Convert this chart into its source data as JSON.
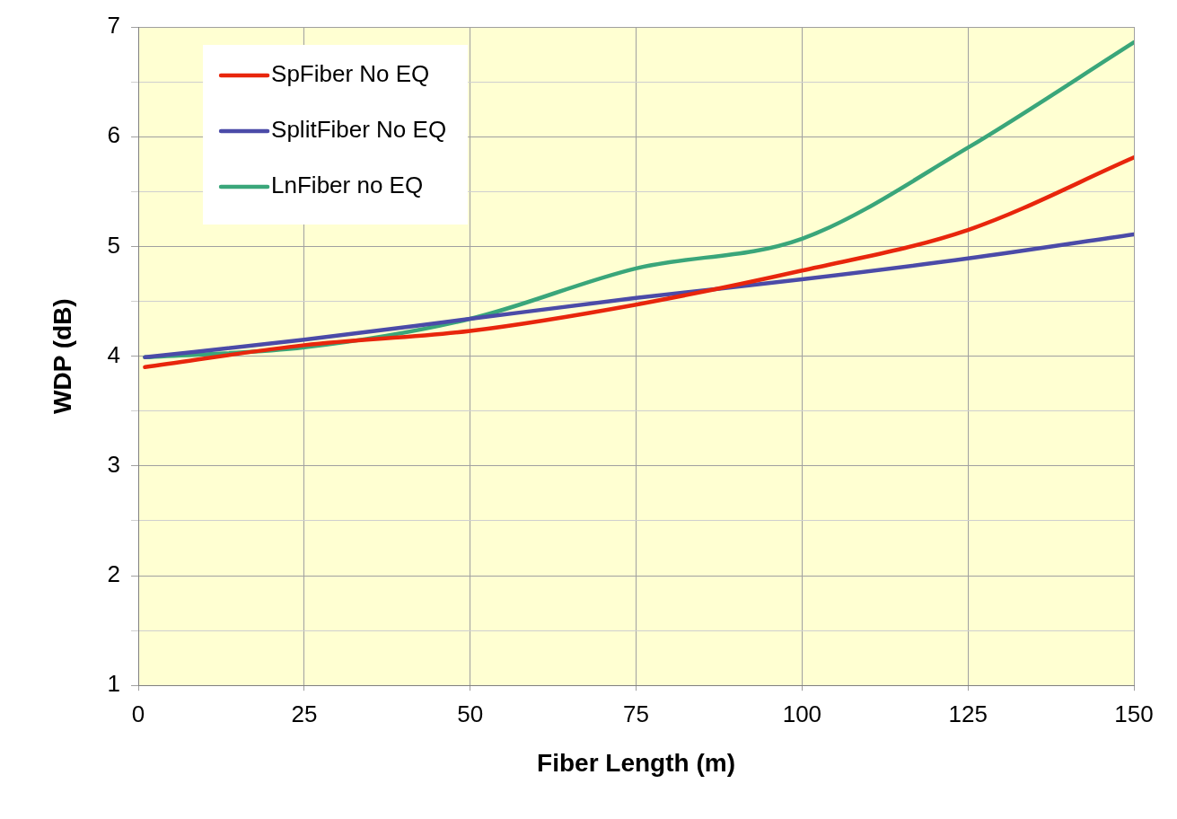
{
  "chart_data": {
    "type": "line",
    "xlabel": "Fiber Length (m)",
    "ylabel": "WDP (dB)",
    "xlim": [
      0,
      150
    ],
    "xticks": [
      0,
      25,
      50,
      75,
      100,
      125,
      150
    ],
    "ylim": [
      1,
      7
    ],
    "yticks": [
      1,
      {
        "value": 1.5,
        "label": null
      },
      2,
      {
        "value": 2.5,
        "label": null
      },
      3,
      {
        "value": 3.5,
        "label": null
      },
      4,
      {
        "value": 4.5,
        "label": null
      },
      5,
      {
        "value": 5.5,
        "label": null
      },
      6,
      {
        "value": 6.5,
        "label": null
      },
      7
    ],
    "grid": true,
    "legend": "top left",
    "marker": "none",
    "line_style": "solid",
    "series": [
      {
        "name": "SpFiber No EQ",
        "color": "#e8260c",
        "x": [
          1,
          25,
          50,
          75,
          100,
          125,
          150
        ],
        "values": [
          3.9,
          4.1,
          4.23,
          4.47,
          4.78,
          5.15,
          5.81
        ]
      },
      {
        "name": "SplitFiber No EQ",
        "color": "#4b4ba8",
        "x": [
          1,
          25,
          50,
          75,
          100,
          125,
          150
        ],
        "values": [
          3.99,
          4.15,
          4.34,
          4.53,
          4.7,
          4.89,
          5.11
        ]
      },
      {
        "name": "LnFiber no EQ",
        "color": "#3aa67a",
        "x": [
          1,
          25,
          50,
          75,
          100,
          125,
          150
        ],
        "values": [
          3.99,
          4.08,
          4.34,
          4.8,
          5.07,
          5.9,
          6.86
        ]
      }
    ]
  }
}
